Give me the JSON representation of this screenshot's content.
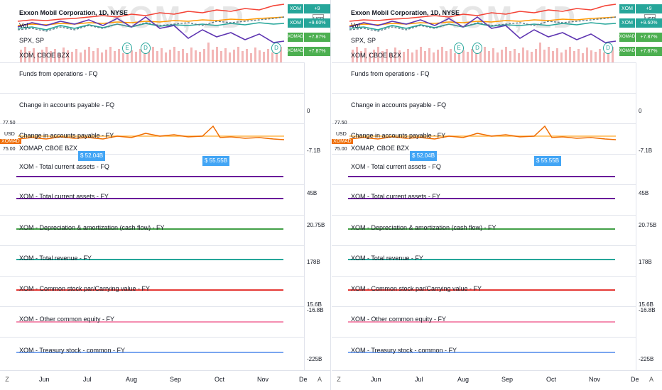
{
  "main_title": "Exxon Mobil Corporation, 1D, NYSE",
  "legend": [
    "Vol",
    "SPX, SP",
    "XOM, CBOE BZX"
  ],
  "watermark": "XOM, 1D",
  "badges": [
    {
      "sym": "XOM",
      "val": "+9",
      "color": "#26a69a"
    },
    {
      "sym": "XOM",
      "val": "+9.60%",
      "color": "#26a69a"
    },
    {
      "sym": "XOMAD",
      "val": "+7.87%",
      "color": "#4caf50"
    },
    {
      "sym": "XOMAD",
      "val": "+7.87%",
      "color": "#4caf50"
    }
  ],
  "usd_label": "USD",
  "events": [
    "E",
    "D",
    "D"
  ],
  "panes": {
    "ffo": "Funds from operations - FQ",
    "cap_fq": "Change in accounts payable - FQ",
    "cap_fy": "Change in accounts payable - FY",
    "xomap": "XOMAP, CBOE BZX"
  },
  "price_flags": [
    "$ 52.04B",
    "$ 55.55B"
  ],
  "mini_left": [
    "77.50",
    "USD",
    "XOMAD",
    "75.00"
  ],
  "lines": [
    {
      "label": "XOM - Total current assets - FQ",
      "color": "#6a1b9a"
    },
    {
      "label": "XOM - Total current assets - FY",
      "color": "#6a1b9a"
    },
    {
      "label": "XOM - Depreciation & amortization (cash flow) - FY",
      "color": "#43a047"
    },
    {
      "label": "XOM - Total revenue - FY",
      "color": "#26a69a"
    },
    {
      "label": "XOM - Common stock par/Carrying value - FY",
      "color": "#e53935"
    },
    {
      "label": "XOM - Other common equity - FY",
      "color": "#f48fb1"
    },
    {
      "label": "XOM - Treasury stock - common - FY",
      "color": "#7aa6f0"
    }
  ],
  "scale_ticks": [
    "0",
    "-7.1B",
    "45B",
    "20.75B",
    "178B",
    "15.6B",
    "-16.8B",
    "-225B"
  ],
  "months": [
    "Jun",
    "Jul",
    "Aug",
    "Sep",
    "Oct",
    "Nov",
    "De"
  ],
  "axis_buttons": [
    "Z",
    "A"
  ]
}
